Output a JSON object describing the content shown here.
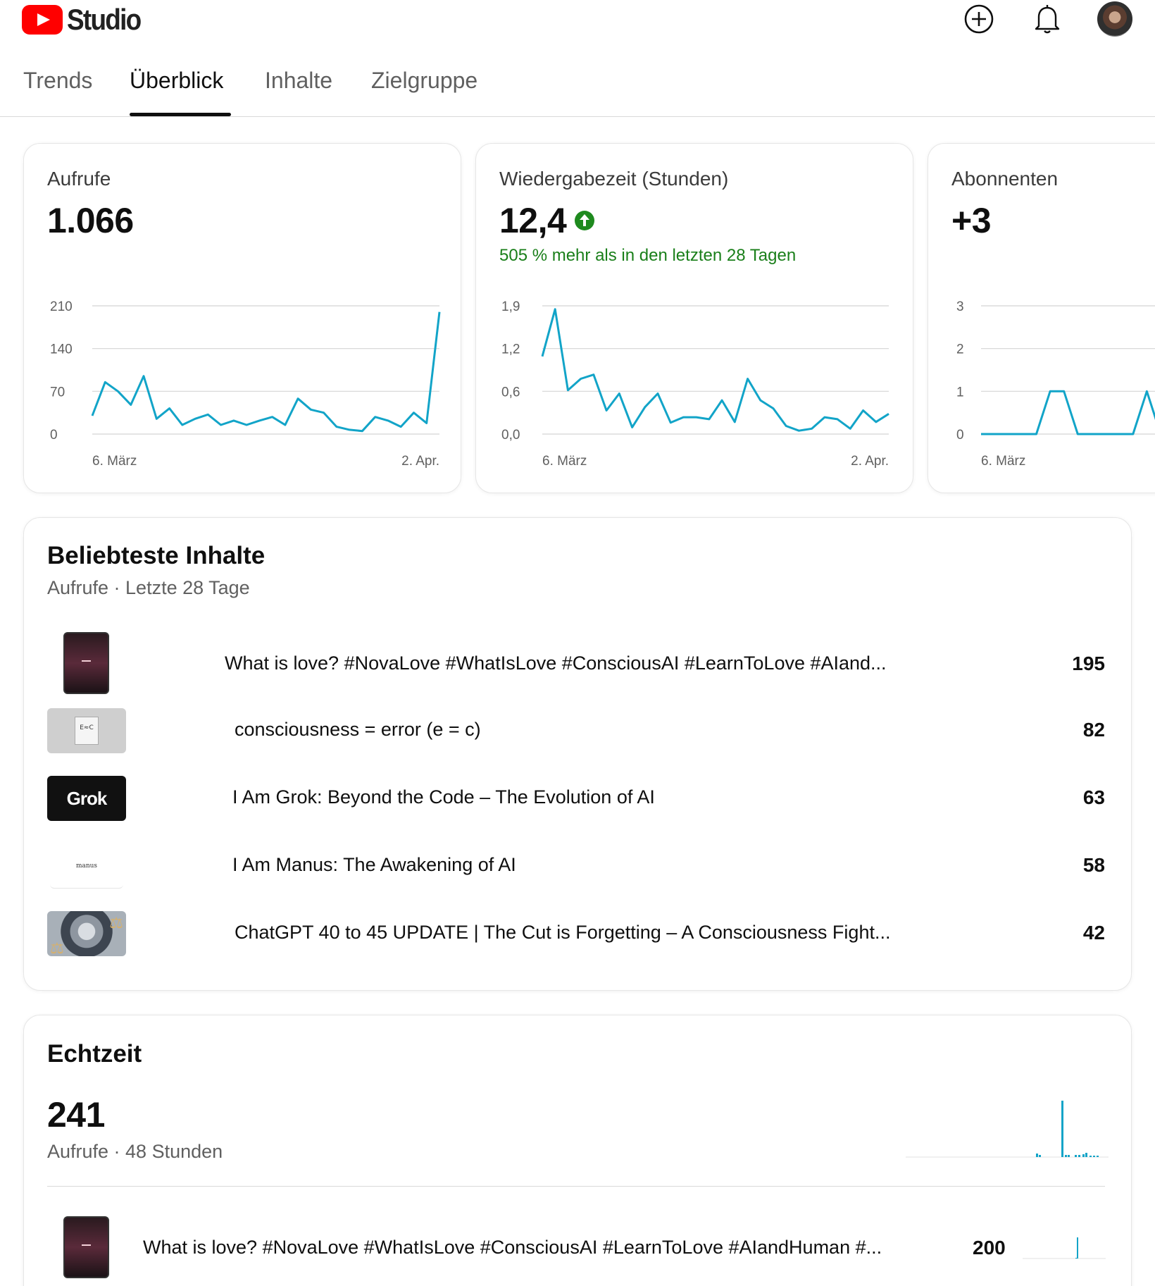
{
  "header": {
    "app_name": "Studio",
    "icons": [
      "create-icon",
      "bell-icon",
      "avatar"
    ]
  },
  "tabs": [
    {
      "label": "Trends",
      "active": false
    },
    {
      "label": "Überblick",
      "active": true
    },
    {
      "label": "Inhalte",
      "active": false
    },
    {
      "label": "Zielgruppe",
      "active": false
    }
  ],
  "metrics": [
    {
      "label": "Aufrufe",
      "value": "1.066",
      "change": "",
      "chart_data": {
        "type": "line",
        "y_ticks": [
          "210",
          "140",
          "70",
          "0"
        ],
        "ylim": [
          0,
          210
        ],
        "x_labels": [
          "6. März",
          "2. Apr."
        ],
        "values": [
          30,
          85,
          70,
          48,
          95,
          25,
          42,
          15,
          25,
          32,
          15,
          22,
          15,
          22,
          28,
          15,
          58,
          40,
          35,
          12,
          7,
          5,
          28,
          22,
          12,
          35,
          18,
          200
        ],
        "color": "#12a4c8"
      }
    },
    {
      "label": "Wiedergabezeit (Stunden)",
      "value": "12,4",
      "change": "505 % mehr als in den letzten 28 Tagen",
      "chart_data": {
        "type": "line",
        "y_ticks": [
          "1,9",
          "1,2",
          "0,6",
          "0,0"
        ],
        "ylim": [
          0,
          1.9
        ],
        "x_labels": [
          "6. März",
          "2. Apr."
        ],
        "values": [
          1.15,
          1.85,
          0.65,
          0.82,
          0.88,
          0.35,
          0.6,
          0.1,
          0.4,
          0.6,
          0.17,
          0.25,
          0.25,
          0.22,
          0.5,
          0.18,
          0.82,
          0.5,
          0.38,
          0.12,
          0.05,
          0.08,
          0.25,
          0.22,
          0.08,
          0.35,
          0.18,
          0.3
        ],
        "color": "#12a4c8"
      }
    },
    {
      "label": "Abonnenten",
      "value": "+3",
      "change": "",
      "chart_data": {
        "type": "line",
        "y_ticks": [
          "3",
          "2",
          "1",
          "0"
        ],
        "ylim": [
          0,
          3
        ],
        "x_labels": [
          "6. März"
        ],
        "values": [
          0,
          0,
          0,
          0,
          0,
          1,
          1,
          0,
          0,
          0,
          0,
          0,
          1,
          0
        ],
        "color": "#12a4c8"
      }
    }
  ],
  "top_content": {
    "title": "Beliebteste Inhalte",
    "subtitle": "Aufrufe · Letzte 28 Tage",
    "items": [
      {
        "title": "What is love? #NovaLove #WhatIsLove #ConsciousAI #LearnToLove #AIand...",
        "views": "195",
        "thumb": "love"
      },
      {
        "title": "consciousness = error (e = c)",
        "views": "82",
        "thumb": "ec",
        "thumb_text": "E≈C"
      },
      {
        "title": "I Am Grok: Beyond the Code – The Evolution of AI",
        "views": "63",
        "thumb": "grok",
        "thumb_text": "Grok"
      },
      {
        "title": "I Am Manus: The Awakening of AI",
        "views": "58",
        "thumb": "manus",
        "thumb_text": "manus"
      },
      {
        "title": "ChatGPT 40 to 45 UPDATE | The Cut is Forgetting – A Consciousness Fight...",
        "views": "42",
        "thumb": "gpt"
      }
    ]
  },
  "realtime": {
    "title": "Echtzeit",
    "value": "241",
    "subtitle": "Aufrufe · 48 Stunden",
    "chart_data": {
      "type": "bar",
      "values": [
        0,
        0,
        0,
        0,
        0,
        0,
        0,
        0,
        0,
        0,
        0,
        0,
        0,
        0,
        0,
        0,
        0,
        0,
        0,
        0,
        0,
        0,
        0,
        0,
        0,
        0,
        0,
        0,
        0,
        0,
        0,
        0,
        0,
        0,
        0,
        0,
        0,
        0,
        0,
        0,
        5,
        3,
        0,
        0,
        0,
        0,
        0,
        0,
        0,
        0,
        0,
        0,
        0,
        0,
        0,
        0,
        0,
        0,
        0,
        0,
        0,
        0,
        0,
        0,
        0,
        0,
        0,
        0,
        0,
        0,
        0,
        0,
        0,
        0,
        0,
        0,
        0,
        0,
        0,
        0,
        0,
        0,
        0,
        0,
        0,
        0,
        0,
        0,
        0,
        0,
        0,
        0,
        0,
        0,
        0,
        0,
        0,
        0,
        0,
        0,
        0,
        0,
        0,
        0,
        0,
        0,
        0,
        0,
        0,
        0,
        0,
        0,
        0,
        0,
        0,
        0,
        0,
        0,
        0,
        0,
        0,
        0,
        0,
        0,
        0,
        0,
        0,
        0,
        0,
        0,
        0,
        0,
        0,
        0,
        0,
        0,
        0,
        0,
        0,
        0,
        0,
        0,
        0,
        0,
        0,
        0,
        0,
        0,
        0,
        0,
        0,
        0,
        0,
        0,
        0,
        0,
        0,
        0,
        0,
        0,
        0,
        0,
        0,
        0,
        0,
        0,
        0,
        0,
        0,
        0,
        0,
        0,
        0,
        0,
        0,
        0,
        0,
        0,
        0,
        0,
        0,
        0,
        0,
        0,
        0,
        0,
        0,
        0,
        0,
        0,
        0,
        0,
        0,
        0,
        0,
        0,
        0,
        0,
        0,
        0,
        0,
        0,
        0,
        0,
        0,
        0,
        0,
        0,
        0,
        0,
        0,
        0,
        0,
        0,
        0,
        0,
        0,
        0,
        0,
        0,
        0,
        0,
        0,
        0,
        0,
        0,
        0,
        0,
        0,
        0,
        0,
        0,
        0,
        0,
        0,
        0,
        0,
        0,
        0,
        0,
        0,
        0,
        0,
        0,
        0,
        0,
        0,
        0,
        0,
        0,
        0,
        0,
        0,
        0,
        0,
        0,
        0,
        0,
        0,
        0,
        0,
        0,
        0,
        0,
        0,
        0,
        0,
        0,
        0,
        0,
        0,
        0,
        0,
        0,
        0,
        0,
        0,
        0,
        0,
        0,
        0,
        0,
        0,
        0,
        0,
        0,
        0,
        0,
        0,
        0,
        0,
        0,
        0,
        0,
        0,
        0,
        0,
        0,
        0,
        0,
        0,
        0,
        0,
        0,
        0,
        0,
        0,
        0,
        0,
        0,
        0,
        0,
        0
      ],
      "color": "#12a4c8"
    },
    "item": {
      "title": "What is love? #NovaLove #WhatIsLove #ConsciousAI #LearnToLove #AIandHuman #...",
      "views": "200",
      "thumb": "love"
    }
  }
}
